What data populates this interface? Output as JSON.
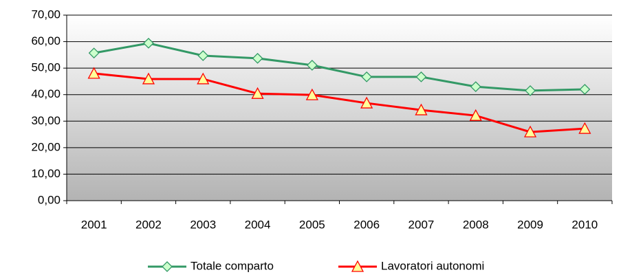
{
  "chart_data": {
    "type": "line",
    "categories": [
      "2001",
      "2002",
      "2003",
      "2004",
      "2005",
      "2006",
      "2007",
      "2008",
      "2009",
      "2010"
    ],
    "series": [
      {
        "name": "Totale comparto",
        "color": "#339966",
        "marker": "diamond",
        "marker_fill": "#ccffcc",
        "values": [
          55.7,
          59.4,
          54.7,
          53.7,
          51.1,
          46.7,
          46.7,
          43.0,
          41.5,
          42.0
        ]
      },
      {
        "name": "Lavoratori autonomi",
        "color": "#ff0000",
        "marker": "triangle",
        "marker_fill": "#ffff99",
        "values": [
          48.0,
          45.9,
          45.9,
          40.4,
          39.9,
          36.8,
          34.2,
          32.1,
          25.9,
          27.2
        ]
      }
    ],
    "ylim": [
      0,
      70
    ],
    "yticks": [
      {
        "value": 0,
        "label": "0,00"
      },
      {
        "value": 10,
        "label": "10,00"
      },
      {
        "value": 20,
        "label": "20,00"
      },
      {
        "value": 30,
        "label": "30,00"
      },
      {
        "value": 40,
        "label": "40,00"
      },
      {
        "value": 50,
        "label": "50,00"
      },
      {
        "value": 60,
        "label": "60,00"
      },
      {
        "value": 70,
        "label": "70,00"
      }
    ],
    "grid": true,
    "legend": "bottom"
  }
}
